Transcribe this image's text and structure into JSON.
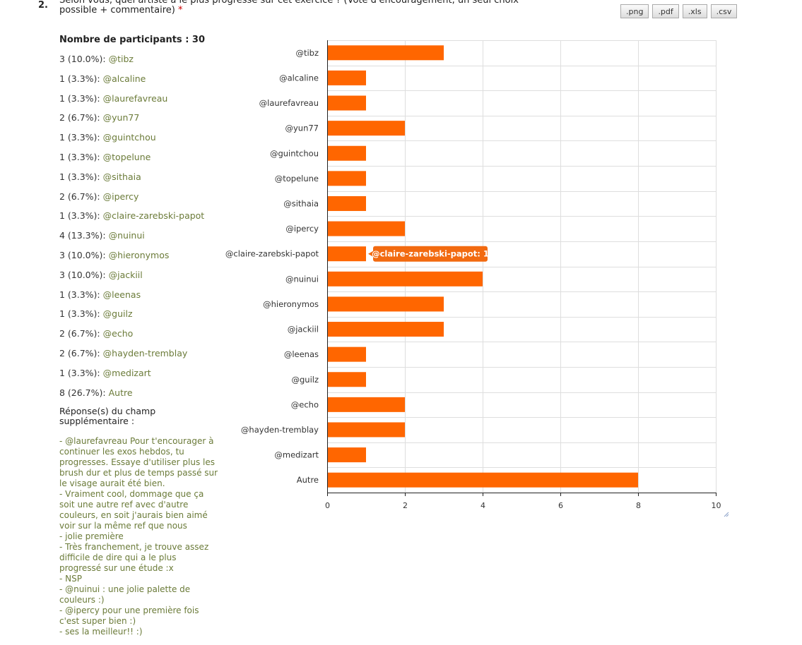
{
  "question": {
    "number": "2.",
    "title": "Selon vous, quel artiste a le plus progressé sur cet exercice ? (Vote d'encouragement, un seul choix possible + commentaire)",
    "required_mark": "*"
  },
  "exports": [
    ".png",
    ".pdf",
    ".xls",
    ".csv"
  ],
  "participants_label": "Nombre de participants : 30",
  "results": [
    {
      "count": "3 (10.0%):",
      "name": "@tibz"
    },
    {
      "count": "1 (3.3%):",
      "name": "@alcaline"
    },
    {
      "count": "1 (3.3%):",
      "name": "@laurefavreau"
    },
    {
      "count": "2 (6.7%):",
      "name": "@yun77"
    },
    {
      "count": "1 (3.3%):",
      "name": "@guintchou"
    },
    {
      "count": "1 (3.3%):",
      "name": "@topelune"
    },
    {
      "count": "1 (3.3%):",
      "name": "@sithaia"
    },
    {
      "count": "2 (6.7%):",
      "name": "@ipercy"
    },
    {
      "count": "1 (3.3%):",
      "name": "@claire-zarebski-papot"
    },
    {
      "count": "4 (13.3%):",
      "name": "@nuinui"
    },
    {
      "count": "3 (10.0%):",
      "name": "@hieronymos"
    },
    {
      "count": "3 (10.0%):",
      "name": "@jackiil"
    },
    {
      "count": "1 (3.3%):",
      "name": "@leenas"
    },
    {
      "count": "1 (3.3%):",
      "name": "@guilz"
    },
    {
      "count": "2 (6.7%):",
      "name": "@echo"
    },
    {
      "count": "2 (6.7%):",
      "name": "@hayden-tremblay"
    },
    {
      "count": "1 (3.3%):",
      "name": "@medizart"
    },
    {
      "count": "8 (26.7%):",
      "name": "Autre"
    }
  ],
  "extra_title": "Réponse(s) du champ supplémentaire :",
  "extra_responses": [
    "- @laurefavreau Pour t'encourager à continuer les exos hebdos, tu progresses. Essaye d'utiliser plus les brush dur et plus de temps passé sur le visage aurait été bien.",
    "- Vraiment cool, dommage que ça soit une autre ref avec d'autre couleurs, en soit j'aurais bien aimé voir sur la même ref que nous",
    "- jolie première",
    "- Très franchement, je trouve assez difficile de dire qui a le plus progressé sur une étude :x",
    "- NSP",
    "- @nuinui : une jolie palette de couleurs :)",
    "- @ipercy pour une première fois c'est super bien :)",
    "- ses la meilleur!! :)"
  ],
  "colors": {
    "bar": "#ff6600",
    "tooltip_bg": "#f26a10",
    "text_green": "#6b7b39"
  },
  "chart_data": {
    "type": "bar",
    "orientation": "horizontal",
    "categories": [
      "@tibz",
      "@alcaline",
      "@laurefavreau",
      "@yun77",
      "@guintchou",
      "@topelune",
      "@sithaia",
      "@ipercy",
      "@claire-zarebski-papot",
      "@nuinui",
      "@hieronymos",
      "@jackiil",
      "@leenas",
      "@guilz",
      "@echo",
      "@hayden-tremblay",
      "@medizart",
      "Autre"
    ],
    "values": [
      3,
      1,
      1,
      2,
      1,
      1,
      1,
      2,
      1,
      4,
      3,
      3,
      1,
      1,
      2,
      2,
      1,
      8
    ],
    "xlim": [
      0,
      10
    ],
    "xticks": [
      0,
      2,
      4,
      6,
      8,
      10
    ],
    "grid": true,
    "tooltip": {
      "category": "@claire-zarebski-papot",
      "text": "@claire-zarebski-papot: 1"
    }
  }
}
